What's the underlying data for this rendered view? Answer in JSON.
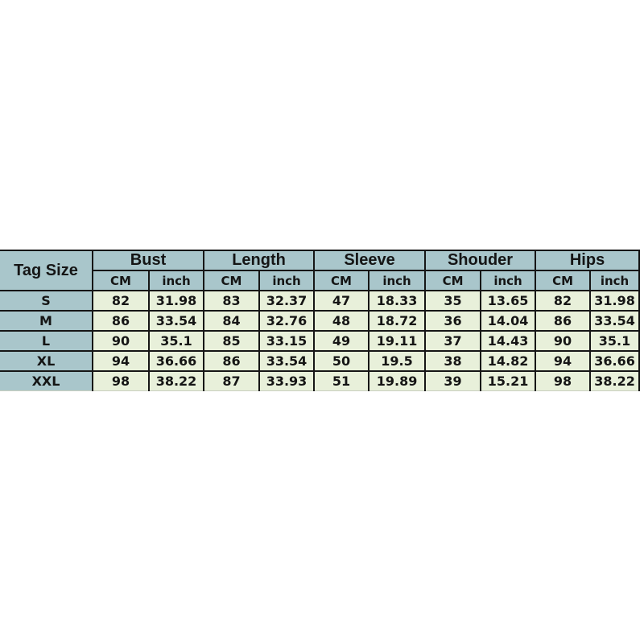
{
  "table": {
    "corner_label": "Tag Size",
    "groups": [
      {
        "label": "Bust"
      },
      {
        "label": "Length"
      },
      {
        "label": "Sleeve"
      },
      {
        "label": "Shouder"
      },
      {
        "label": "Hips"
      }
    ],
    "unit_headers": [
      "CM",
      "inch"
    ],
    "rows": [
      {
        "size": "S",
        "values": [
          "82",
          "31.98",
          "83",
          "32.37",
          "47",
          "18.33",
          "35",
          "13.65",
          "82",
          "31.98"
        ]
      },
      {
        "size": "M",
        "values": [
          "86",
          "33.54",
          "84",
          "32.76",
          "48",
          "18.72",
          "36",
          "14.04",
          "86",
          "33.54"
        ]
      },
      {
        "size": "L",
        "values": [
          "90",
          "35.1",
          "85",
          "33.15",
          "49",
          "19.11",
          "37",
          "14.43",
          "90",
          "35.1"
        ]
      },
      {
        "size": "XL",
        "values": [
          "94",
          "36.66",
          "86",
          "33.54",
          "50",
          "19.5",
          "38",
          "14.82",
          "94",
          "36.66"
        ]
      },
      {
        "size": "XXL",
        "values": [
          "98",
          "38.22",
          "87",
          "33.93",
          "51",
          "19.89",
          "39",
          "15.21",
          "98",
          "38.22"
        ]
      }
    ],
    "colors": {
      "header_bg": "#a9c6cb",
      "cell_bg": "#e8f0da",
      "border": "#161616",
      "text": "#151515",
      "page_bg": "#ffffff"
    }
  },
  "chart_data": {
    "type": "table",
    "columns": [
      "Tag Size",
      "Bust CM",
      "Bust inch",
      "Length CM",
      "Length inch",
      "Sleeve CM",
      "Sleeve inch",
      "Shouder CM",
      "Shouder inch",
      "Hips CM",
      "Hips inch"
    ],
    "rows": [
      [
        "S",
        82,
        31.98,
        83,
        32.37,
        47,
        18.33,
        35,
        13.65,
        82,
        31.98
      ],
      [
        "M",
        86,
        33.54,
        84,
        32.76,
        48,
        18.72,
        36,
        14.04,
        86,
        33.54
      ],
      [
        "L",
        90,
        35.1,
        85,
        33.15,
        49,
        19.11,
        37,
        14.43,
        90,
        35.1
      ],
      [
        "XL",
        94,
        36.66,
        86,
        33.54,
        50,
        19.5,
        38,
        14.82,
        94,
        36.66
      ],
      [
        "XXL",
        98,
        38.22,
        87,
        33.93,
        51,
        19.89,
        39,
        15.21,
        98,
        38.22
      ]
    ],
    "title": "",
    "legend": [],
    "notes": "Clothing size chart; sizes S-XXL with CM and inch measurements per body dimension"
  }
}
